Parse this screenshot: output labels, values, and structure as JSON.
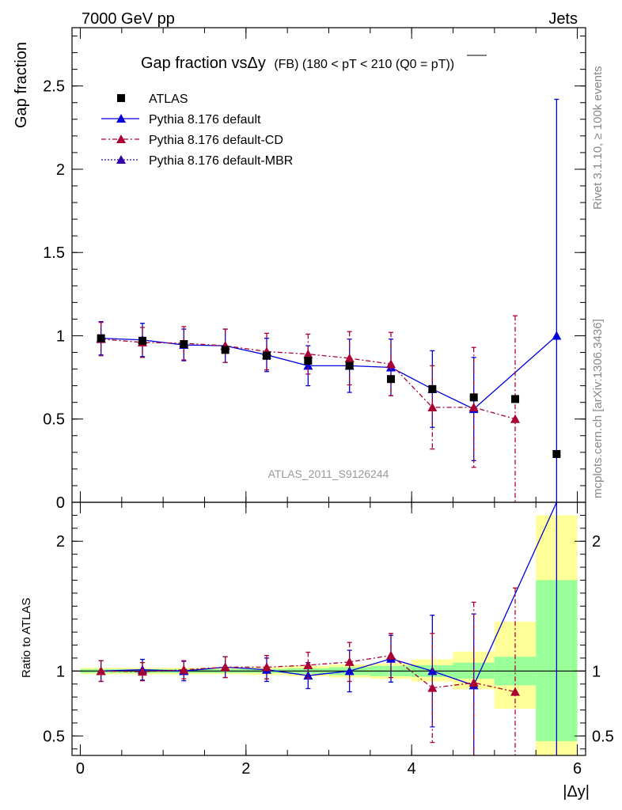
{
  "header": {
    "left": "7000 GeV pp",
    "right": "Jets"
  },
  "side_labels": {
    "rivet": "Rivet 3.1.10, ≥ 100k events",
    "mcplots": "mcplots.cern.ch [arXiv:1306.3436]"
  },
  "chart_data": {
    "type": "scatter",
    "title": "Gap fraction vsΔy",
    "title_detail": "(FB) (180 < pT < 210 (Q0 = pT))",
    "watermark": "ATLAS_2011_S9126244",
    "xlabel": "|Δy|",
    "ylabel_top": "Gap fraction",
    "ylabel_bottom": "Ratio to ATLAS",
    "xlim": [
      -0.1,
      6.1
    ],
    "ylim_top": [
      0,
      2.85
    ],
    "ylim_bottom": [
      0.35,
      2.3
    ],
    "x_ticks": [
      "0",
      "2",
      "4",
      "6"
    ],
    "y_ticks_top": [
      "0",
      "0.5",
      "1",
      "1.5",
      "2",
      "2.5"
    ],
    "y_ticks_bottom": [
      "0.5",
      "1",
      "2"
    ],
    "legend_position": "top-left",
    "x_bins": [
      [
        0,
        0.5
      ],
      [
        0.5,
        1
      ],
      [
        1,
        1.5
      ],
      [
        1.5,
        2
      ],
      [
        2,
        2.5
      ],
      [
        2.5,
        3
      ],
      [
        3,
        3.5
      ],
      [
        3.5,
        4
      ],
      [
        4,
        4.5
      ],
      [
        4.5,
        5
      ],
      [
        5,
        5.5
      ],
      [
        5.5,
        6
      ]
    ],
    "x_centers": [
      0.25,
      0.75,
      1.25,
      1.75,
      2.25,
      2.75,
      3.25,
      3.75,
      4.25,
      4.75,
      5.25,
      5.75
    ],
    "data": {
      "name": "ATLAS",
      "color": "#000000",
      "values": [
        0.985,
        0.97,
        0.95,
        0.915,
        0.88,
        0.85,
        0.82,
        0.74,
        0.68,
        0.63,
        0.62,
        0.29
      ]
    },
    "series": [
      {
        "name": "Pythia 8.176 default",
        "color": "#0000dd",
        "line": "solid",
        "values": [
          0.985,
          0.975,
          0.945,
          0.94,
          0.885,
          0.82,
          0.82,
          0.81,
          0.68,
          0.56,
          null,
          1.0
        ],
        "err": [
          0.1,
          0.1,
          0.095,
          0.1,
          0.1,
          0.12,
          0.16,
          0.17,
          0.23,
          0.31,
          null,
          1.42
        ],
        "ratio": [
          1.0,
          1.01,
          1.0,
          1.03,
          1.01,
          0.965,
          1.0,
          1.095,
          1.0,
          0.89,
          null,
          2.3
        ],
        "ratio_err": [
          0.08,
          0.08,
          0.075,
          0.08,
          0.09,
          0.1,
          0.16,
          0.18,
          0.43,
          0.55,
          null,
          2.5
        ]
      },
      {
        "name": "Pythia 8.176 default-CD",
        "color": "#aa0033",
        "line": "dashdot",
        "values": [
          0.98,
          0.96,
          0.955,
          0.94,
          0.905,
          0.89,
          0.865,
          0.83,
          0.57,
          0.57,
          0.5,
          null
        ],
        "err": [
          0.1,
          0.09,
          0.1,
          0.1,
          0.11,
          0.12,
          0.16,
          0.19,
          0.25,
          0.36,
          0.62,
          null
        ],
        "ratio": [
          1.0,
          0.995,
          1.01,
          1.03,
          1.03,
          1.045,
          1.07,
          1.12,
          0.87,
          0.91,
          0.84,
          null
        ],
        "ratio_err": [
          0.08,
          0.07,
          0.07,
          0.08,
          0.09,
          0.1,
          0.15,
          0.17,
          0.42,
          0.62,
          0.8,
          null
        ]
      },
      {
        "name": "Pythia 8.176 default-MBR",
        "color": "#3300aa",
        "line": "dotted",
        "values": [],
        "err": [],
        "ratio": [],
        "ratio_err": []
      }
    ],
    "bands_green": [
      [
        0.985,
        1.015
      ],
      [
        0.985,
        1.015
      ],
      [
        0.985,
        1.015
      ],
      [
        0.985,
        1.015
      ],
      [
        0.985,
        1.015
      ],
      [
        0.98,
        1.02
      ],
      [
        0.97,
        1.03
      ],
      [
        0.96,
        1.04
      ],
      [
        0.955,
        1.045
      ],
      [
        0.94,
        1.065
      ],
      [
        0.89,
        1.11
      ],
      [
        0.46,
        1.7
      ]
    ],
    "bands_yellow": [
      [
        0.975,
        1.025
      ],
      [
        0.975,
        1.025
      ],
      [
        0.975,
        1.025
      ],
      [
        0.975,
        1.025
      ],
      [
        0.97,
        1.03
      ],
      [
        0.96,
        1.04
      ],
      [
        0.95,
        1.05
      ],
      [
        0.94,
        1.06
      ],
      [
        0.92,
        1.09
      ],
      [
        0.86,
        1.15
      ],
      [
        0.71,
        1.38
      ],
      [
        0.33,
        2.2
      ]
    ]
  }
}
